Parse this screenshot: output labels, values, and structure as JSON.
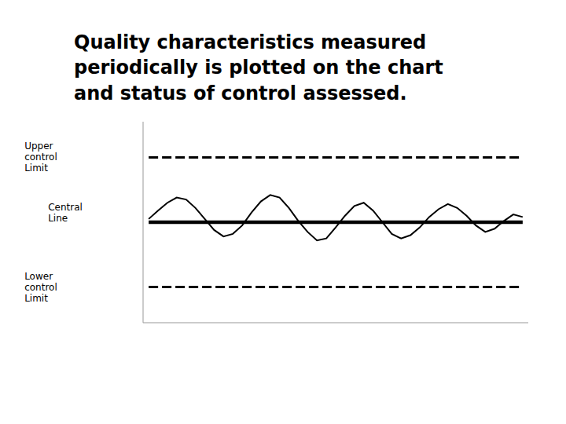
{
  "chart_data": {
    "type": "line",
    "title": "Quality characteristics measured\nperiodically is plotted on the chart\nand status of control assessed.",
    "x": [
      0,
      0.5,
      1,
      1.5,
      2,
      2.5,
      3,
      3.5,
      4,
      4.5,
      5,
      5.5,
      6,
      6.5,
      7,
      7.5,
      8,
      8.5,
      9,
      9.5,
      10,
      10.5,
      11,
      11.5,
      12,
      12.5,
      13,
      13.5,
      14,
      14.5,
      15,
      15.5,
      16,
      16.5,
      17,
      17.5,
      18,
      18.5,
      19,
      19.5,
      20
    ],
    "values": [
      0.05,
      0.18,
      0.3,
      0.38,
      0.35,
      0.22,
      0.05,
      -0.12,
      -0.22,
      -0.18,
      -0.05,
      0.15,
      0.32,
      0.42,
      0.38,
      0.22,
      0.02,
      -0.15,
      -0.28,
      -0.25,
      -0.08,
      0.1,
      0.25,
      0.3,
      0.18,
      0.0,
      -0.18,
      -0.25,
      -0.2,
      -0.08,
      0.08,
      0.2,
      0.28,
      0.22,
      0.1,
      -0.05,
      -0.15,
      -0.1,
      0.02,
      0.12,
      0.08
    ],
    "color": "#000000",
    "reference_lines": [
      {
        "label": "Upper\ncontrol\nLimit",
        "value": 1,
        "x": [
          0,
          20
        ],
        "line_style": "dashed",
        "color": "#000000"
      },
      {
        "label": "Central\nLine",
        "value": 0,
        "x": [
          0,
          20
        ],
        "line_style": "solid",
        "color": "#000000"
      },
      {
        "label": "Lower\ncontrol\nLimit",
        "value": -1,
        "x": [
          0,
          20
        ],
        "line_style": "dashed",
        "color": "#000000"
      }
    ],
    "xlim": [
      -0.3,
      20.3
    ],
    "ylim": [
      -1.55,
      1.55
    ],
    "xticks": [],
    "yticks": [],
    "tick_labels": false,
    "grid": false
  }
}
